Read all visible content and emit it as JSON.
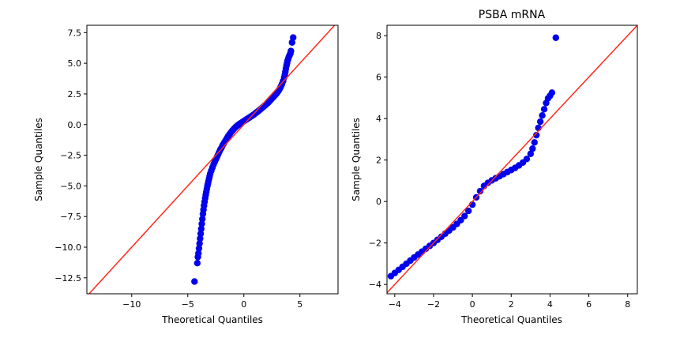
{
  "chart_data": [
    {
      "type": "scatter",
      "title": "",
      "xlabel": "Theoretical Quantiles",
      "ylabel": "Sample Quantiles",
      "xlim": [
        -14,
        8.4
      ],
      "ylim": [
        -13.8,
        8.1
      ],
      "xticks": [
        -10,
        -5,
        0,
        5
      ],
      "xtick_labels": [
        "−10",
        "−5",
        "0",
        "5"
      ],
      "yticks": [
        7.5,
        5.0,
        2.5,
        0.0,
        -2.5,
        -5.0,
        -7.5,
        -10.0,
        -12.5
      ],
      "ytick_labels": [
        "7.5",
        "5.0",
        "2.5",
        "0.0",
        "−2.5",
        "−5.0",
        "−7.5",
        "−10.0",
        "−12.5"
      ],
      "grid": false,
      "reference_line": {
        "x": [
          -14,
          8.4
        ],
        "y": [
          -14,
          8.4
        ],
        "color": "#ff2a1a"
      },
      "marker_color": "#0000ee",
      "series": [
        {
          "x": [
            -4.4,
            -4.15,
            -4.1,
            -4.05,
            -4.0,
            -3.95,
            -3.9,
            -3.85,
            -3.8,
            -3.75,
            -3.7,
            -3.65,
            -3.6,
            -3.55,
            -3.5,
            -3.45,
            -3.4,
            -3.35,
            -3.3,
            -3.25,
            -3.2,
            -3.15,
            -3.1,
            -3.05,
            -3.0,
            -2.9,
            -2.8,
            -2.7,
            -2.6,
            -2.5,
            -2.4,
            -2.3,
            -2.2,
            -2.1,
            -2.0,
            -1.9,
            -1.8,
            -1.7,
            -1.6,
            -1.5,
            -1.4,
            -1.3,
            -1.2,
            -1.1,
            -1.0,
            -0.9,
            -0.8,
            -0.7,
            -0.6,
            -0.5,
            -0.4,
            -0.3,
            -0.2,
            -0.1,
            0.0,
            0.1,
            0.2,
            0.3,
            0.4,
            0.5,
            0.6,
            0.7,
            0.8,
            0.9,
            1.0,
            1.1,
            1.2,
            1.3,
            1.4,
            1.5,
            1.6,
            1.7,
            1.8,
            1.9,
            2.0,
            2.1,
            2.2,
            2.3,
            2.4,
            2.5,
            2.6,
            2.7,
            2.8,
            2.9,
            3.0,
            3.1,
            3.2,
            3.3,
            3.4,
            3.5,
            3.6,
            3.65,
            3.7,
            3.75,
            3.8,
            3.85,
            3.9,
            3.95,
            4.0,
            4.05,
            4.1,
            4.15,
            4.2,
            4.3,
            4.4
          ],
          "y": [
            -12.8,
            -11.3,
            -10.8,
            -10.5,
            -10.1,
            -9.7,
            -9.3,
            -8.9,
            -8.5,
            -8.1,
            -7.7,
            -7.3,
            -6.95,
            -6.6,
            -6.3,
            -6.0,
            -5.75,
            -5.5,
            -5.25,
            -5.0,
            -4.8,
            -4.6,
            -4.4,
            -4.2,
            -4.0,
            -3.75,
            -3.5,
            -3.25,
            -3.05,
            -2.85,
            -2.65,
            -2.45,
            -2.25,
            -2.05,
            -1.9,
            -1.7,
            -1.55,
            -1.4,
            -1.25,
            -1.1,
            -0.95,
            -0.82,
            -0.7,
            -0.58,
            -0.47,
            -0.37,
            -0.27,
            -0.18,
            -0.1,
            -0.03,
            0.04,
            0.1,
            0.16,
            0.22,
            0.28,
            0.34,
            0.4,
            0.46,
            0.52,
            0.58,
            0.64,
            0.7,
            0.76,
            0.82,
            0.9,
            0.97,
            1.04,
            1.11,
            1.18,
            1.26,
            1.34,
            1.42,
            1.5,
            1.58,
            1.66,
            1.74,
            1.82,
            1.92,
            2.02,
            2.12,
            2.22,
            2.32,
            2.42,
            2.52,
            2.64,
            2.77,
            2.92,
            3.1,
            3.3,
            3.55,
            3.85,
            4.05,
            4.3,
            4.55,
            4.8,
            5.0,
            5.2,
            5.35,
            5.5,
            5.6,
            5.7,
            5.8,
            6.0,
            6.7,
            7.1
          ]
        }
      ]
    },
    {
      "type": "scatter",
      "title": "PSBA mRNA",
      "xlabel": "Theoretical Quantiles",
      "ylabel": "Sample Quantiles",
      "xlim": [
        -4.4,
        8.5
      ],
      "ylim": [
        -4.45,
        8.5
      ],
      "xticks": [
        -4,
        -2,
        0,
        2,
        4,
        6,
        8
      ],
      "xtick_labels": [
        "−4",
        "−2",
        "0",
        "2",
        "4",
        "6",
        "8"
      ],
      "yticks": [
        8,
        6,
        4,
        2,
        0,
        -2,
        -4
      ],
      "ytick_labels": [
        "8",
        "6",
        "4",
        "2",
        "0",
        "−2",
        "−4"
      ],
      "grid": false,
      "reference_line": {
        "x": [
          -4.4,
          8.5
        ],
        "y": [
          -4.4,
          8.5
        ],
        "color": "#ff2a1a"
      },
      "marker_color": "#0000ee",
      "series": [
        {
          "x": [
            -4.2,
            -4.0,
            -3.8,
            -3.6,
            -3.4,
            -3.2,
            -3.0,
            -2.8,
            -2.6,
            -2.4,
            -2.2,
            -2.0,
            -1.8,
            -1.6,
            -1.4,
            -1.2,
            -1.0,
            -0.8,
            -0.6,
            -0.4,
            -0.2,
            0.0,
            0.2,
            0.4,
            0.6,
            0.8,
            1.0,
            1.2,
            1.4,
            1.6,
            1.8,
            2.0,
            2.2,
            2.4,
            2.6,
            2.8,
            3.0,
            3.1,
            3.2,
            3.3,
            3.4,
            3.5,
            3.6,
            3.7,
            3.8,
            3.9,
            4.0,
            4.1,
            4.3
          ],
          "y": [
            -3.6,
            -3.45,
            -3.3,
            -3.15,
            -3.0,
            -2.85,
            -2.7,
            -2.56,
            -2.42,
            -2.28,
            -2.14,
            -2.0,
            -1.85,
            -1.7,
            -1.55,
            -1.4,
            -1.25,
            -1.08,
            -0.9,
            -0.7,
            -0.45,
            -0.15,
            0.2,
            0.5,
            0.75,
            0.9,
            1.02,
            1.12,
            1.22,
            1.32,
            1.42,
            1.52,
            1.62,
            1.74,
            1.88,
            2.05,
            2.3,
            2.55,
            2.85,
            3.2,
            3.55,
            3.85,
            4.15,
            4.45,
            4.75,
            4.98,
            5.1,
            5.25,
            7.9
          ]
        }
      ]
    }
  ]
}
